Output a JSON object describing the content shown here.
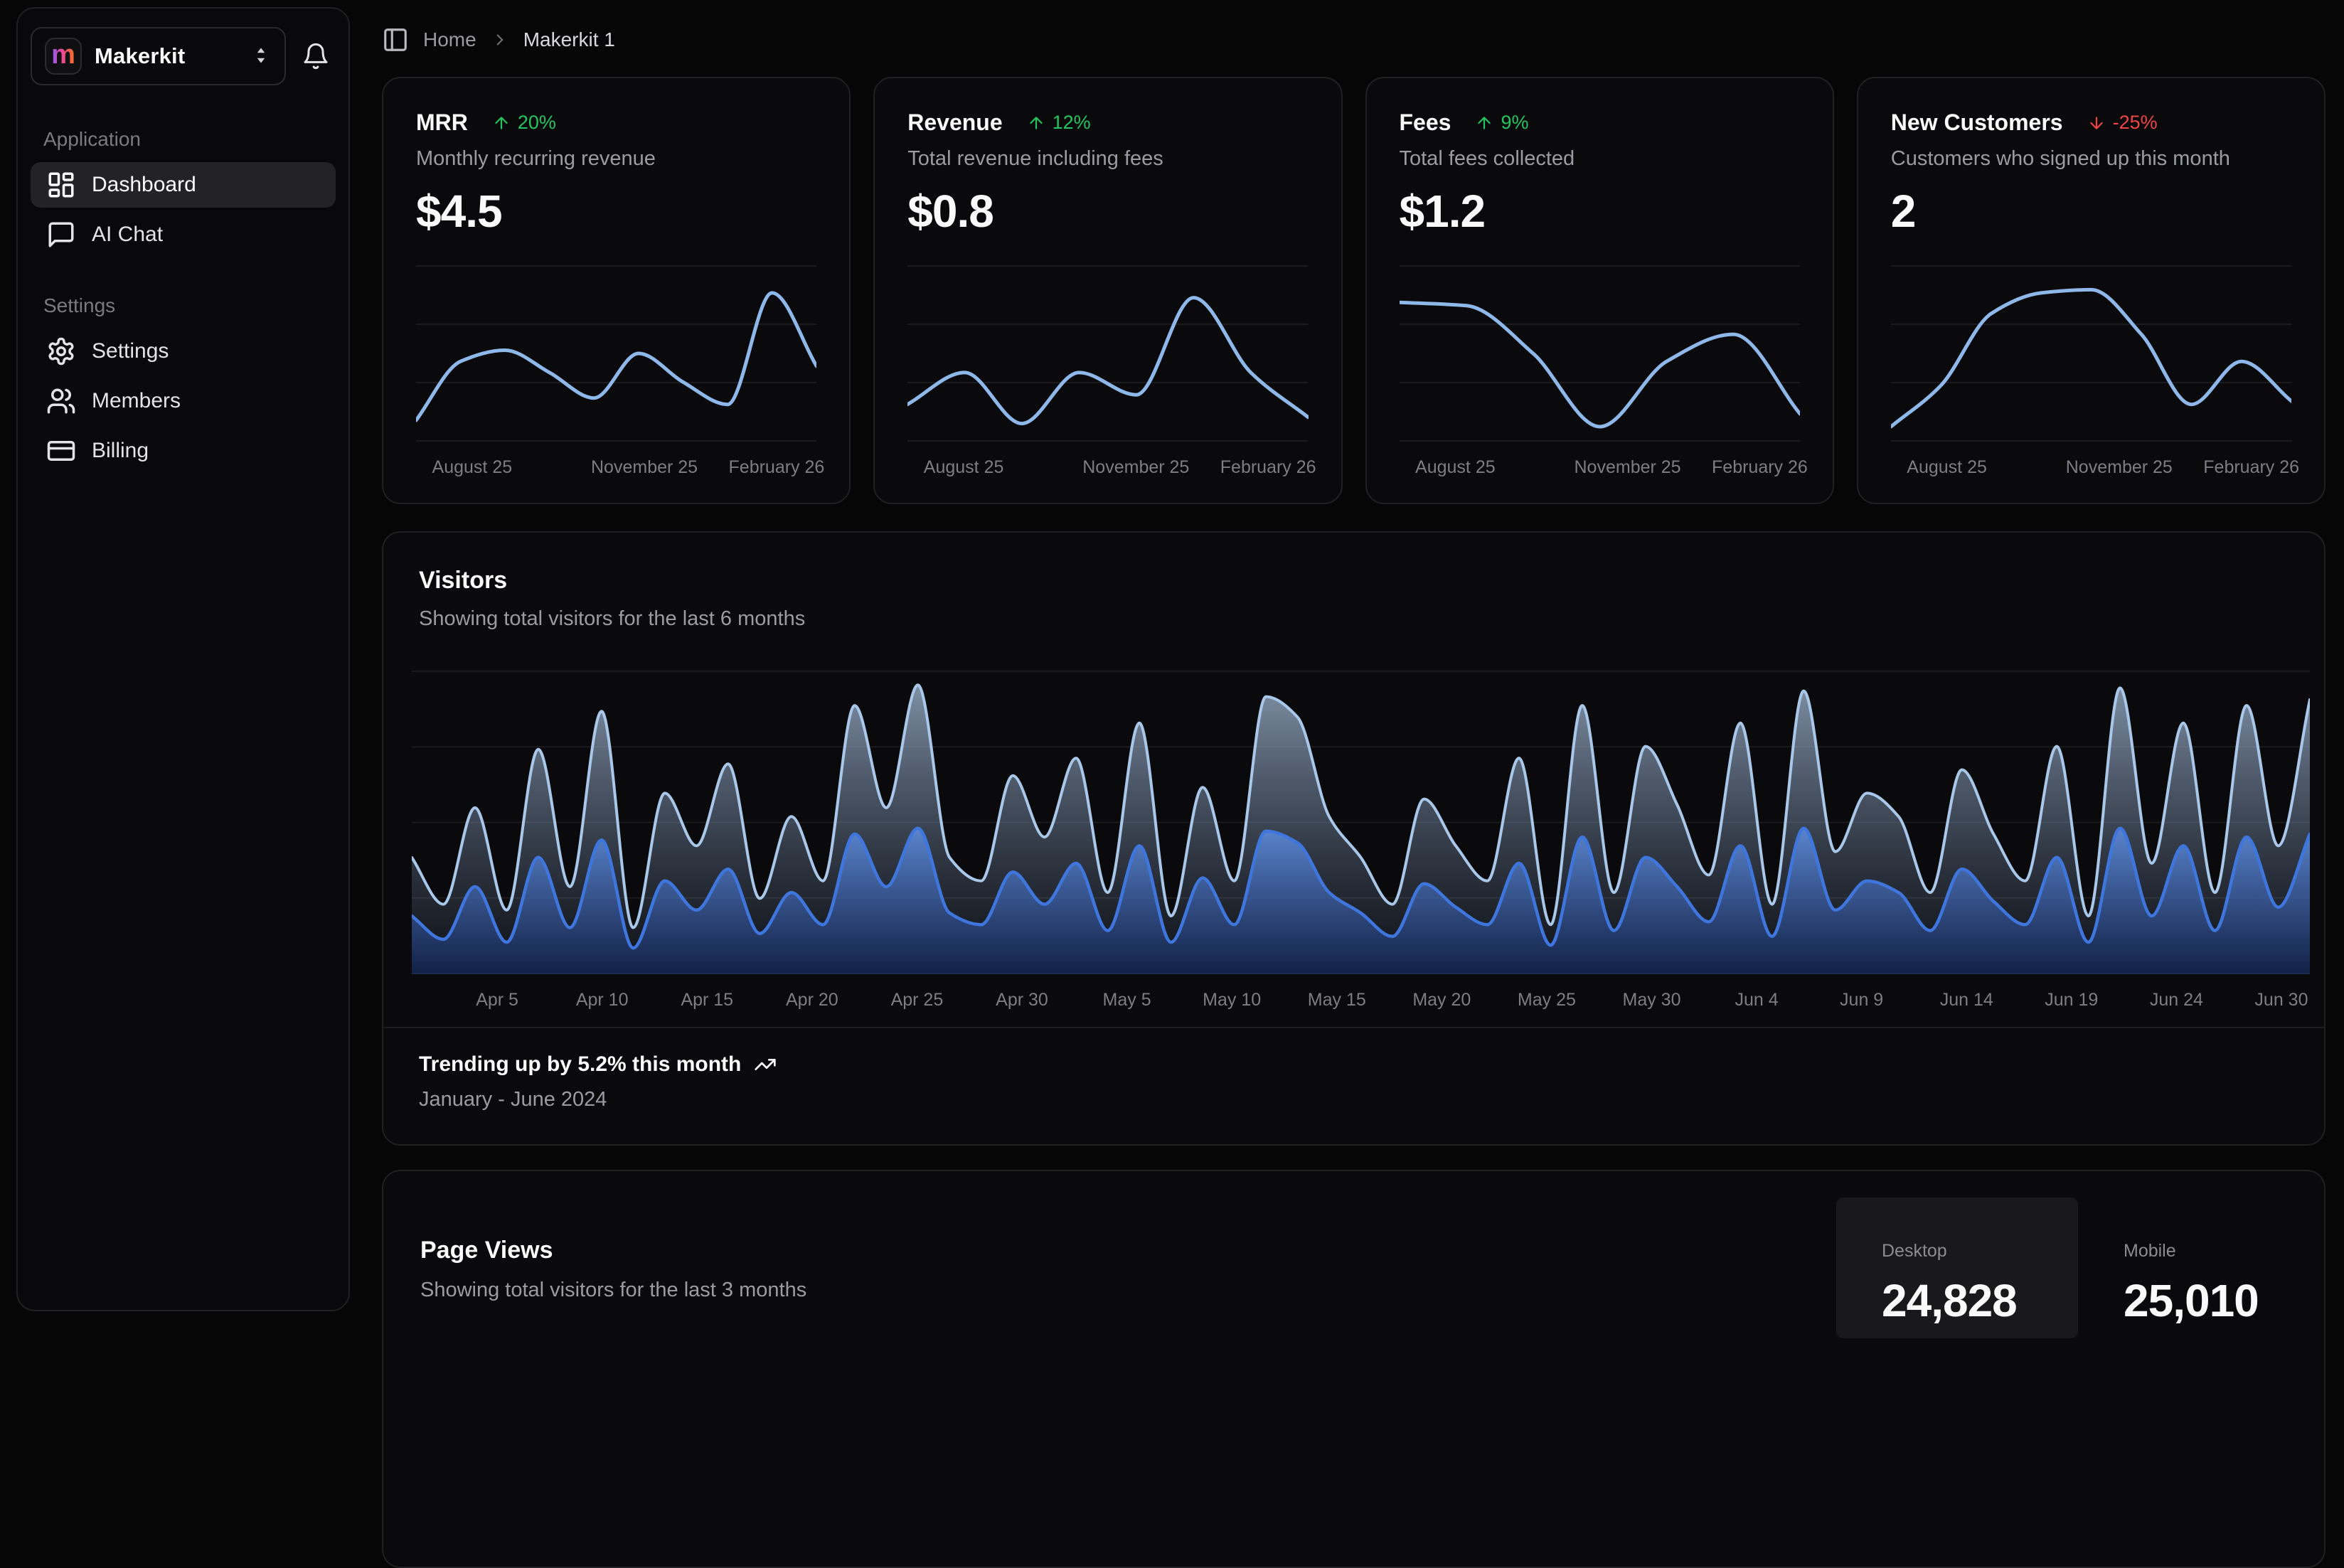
{
  "colors": {
    "green": "#22c55e",
    "red": "#ef4444",
    "spark_line": "#8fb8ea",
    "desktop_line": "#a9c7e9",
    "mobile_line": "#3f76dd",
    "grid_line": "rgba(255,255,255,0.07)",
    "axis_line": "rgba(255,255,255,0.14)"
  },
  "sidebar": {
    "workspace": {
      "name": "Makerkit",
      "logo_letter": "m"
    },
    "notifications_icon": "bell-icon",
    "sections": [
      {
        "label": "Application",
        "items": [
          {
            "label": "Dashboard",
            "icon": "layout-dashboard-icon",
            "active": true
          },
          {
            "label": "AI Chat",
            "icon": "message-square-icon",
            "active": false
          }
        ]
      },
      {
        "label": "Settings",
        "items": [
          {
            "label": "Settings",
            "icon": "gear-icon",
            "active": false
          },
          {
            "label": "Members",
            "icon": "users-icon",
            "active": false
          },
          {
            "label": "Billing",
            "icon": "credit-card-icon",
            "active": false
          }
        ]
      }
    ]
  },
  "breadcrumb": {
    "home": "Home",
    "current": "Makerkit 1"
  },
  "stat_cards": [
    {
      "title": "MRR",
      "change": "20%",
      "direction": "up",
      "description": "Monthly recurring revenue",
      "value": "$4.5"
    },
    {
      "title": "Revenue",
      "change": "12%",
      "direction": "up",
      "description": "Total revenue including fees",
      "value": "$0.8"
    },
    {
      "title": "Fees",
      "change": "9%",
      "direction": "up",
      "description": "Total fees collected",
      "value": "$1.2"
    },
    {
      "title": "New Customers",
      "change": "-25%",
      "direction": "down",
      "description": "Customers who signed up this month",
      "value": "2"
    }
  ],
  "visitors": {
    "title": "Visitors",
    "subtitle": "Showing total visitors for the last 6 months",
    "trend_text": "Trending up by 5.2% this month",
    "trend_icon": "trending-up-icon",
    "range_text": "January - June 2024"
  },
  "page_views": {
    "title": "Page Views",
    "subtitle": "Showing total visitors for the last 3 months",
    "toggles": [
      {
        "label": "Desktop",
        "value": "24,828",
        "active": true
      },
      {
        "label": "Mobile",
        "value": "25,010",
        "active": false
      }
    ]
  },
  "chart_data": [
    {
      "id": "mrr",
      "type": "line",
      "title": "MRR trend",
      "x_ticks": [
        "August 25",
        "November 25",
        "February 26"
      ],
      "series": [
        {
          "name": "MRR",
          "values": [
            8,
            45,
            52,
            38,
            22,
            50,
            32,
            18,
            88,
            42
          ]
        }
      ],
      "ylim": [
        0,
        100
      ],
      "grid": true
    },
    {
      "id": "revenue",
      "type": "line",
      "title": "Revenue trend",
      "x_ticks": [
        "August 25",
        "November 25",
        "February 26"
      ],
      "series": [
        {
          "name": "Revenue",
          "values": [
            18,
            38,
            6,
            38,
            24,
            85,
            38,
            10
          ]
        }
      ],
      "ylim": [
        0,
        100
      ],
      "grid": true
    },
    {
      "id": "fees",
      "type": "line",
      "title": "Fees trend",
      "x_ticks": [
        "August 25",
        "November 25",
        "February 26"
      ],
      "series": [
        {
          "name": "Fees",
          "values": [
            82,
            80,
            50,
            4,
            45,
            62,
            12
          ]
        }
      ],
      "ylim": [
        0,
        100
      ],
      "grid": true
    },
    {
      "id": "customers",
      "type": "line",
      "title": "New customers trend",
      "x_ticks": [
        "August 25",
        "November 25",
        "February 26"
      ],
      "series": [
        {
          "name": "New Customers",
          "values": [
            4,
            30,
            75,
            88,
            90,
            62,
            18,
            45,
            20
          ]
        }
      ],
      "ylim": [
        0,
        100
      ],
      "grid": true
    },
    {
      "id": "visitors",
      "type": "area",
      "title": "Visitors",
      "x_ticks": [
        "Apr 5",
        "Apr 10",
        "Apr 15",
        "Apr 20",
        "Apr 25",
        "Apr 30",
        "May 5",
        "May 10",
        "May 15",
        "May 20",
        "May 25",
        "May 30",
        "Jun 4",
        "Jun 9",
        "Jun 14",
        "Jun 19",
        "Jun 24",
        "Jun 30"
      ],
      "series": [
        {
          "name": "Desktop",
          "values": [
            38,
            22,
            55,
            20,
            75,
            28,
            88,
            14,
            60,
            42,
            70,
            24,
            52,
            30,
            90,
            55,
            97,
            38,
            30,
            66,
            45,
            72,
            26,
            84,
            18,
            62,
            30,
            93,
            86,
            52,
            38,
            22,
            58,
            42,
            30,
            72,
            15,
            90,
            26,
            76,
            56,
            32,
            84,
            22,
            95,
            40,
            60,
            52,
            26,
            68,
            46,
            30,
            76,
            18,
            96,
            36,
            84,
            26,
            90,
            42,
            92
          ]
        },
        {
          "name": "Mobile",
          "values": [
            18,
            10,
            28,
            9,
            38,
            14,
            44,
            7,
            30,
            20,
            34,
            12,
            26,
            15,
            46,
            28,
            48,
            19,
            15,
            33,
            22,
            36,
            13,
            42,
            9,
            31,
            15,
            47,
            43,
            26,
            19,
            11,
            29,
            21,
            15,
            36,
            8,
            45,
            13,
            38,
            28,
            16,
            42,
            11,
            48,
            20,
            30,
            26,
            13,
            34,
            23,
            15,
            38,
            9,
            48,
            18,
            42,
            13,
            45,
            21,
            46
          ]
        }
      ],
      "ylim": [
        0,
        100
      ],
      "grid": true,
      "legend": false
    }
  ]
}
